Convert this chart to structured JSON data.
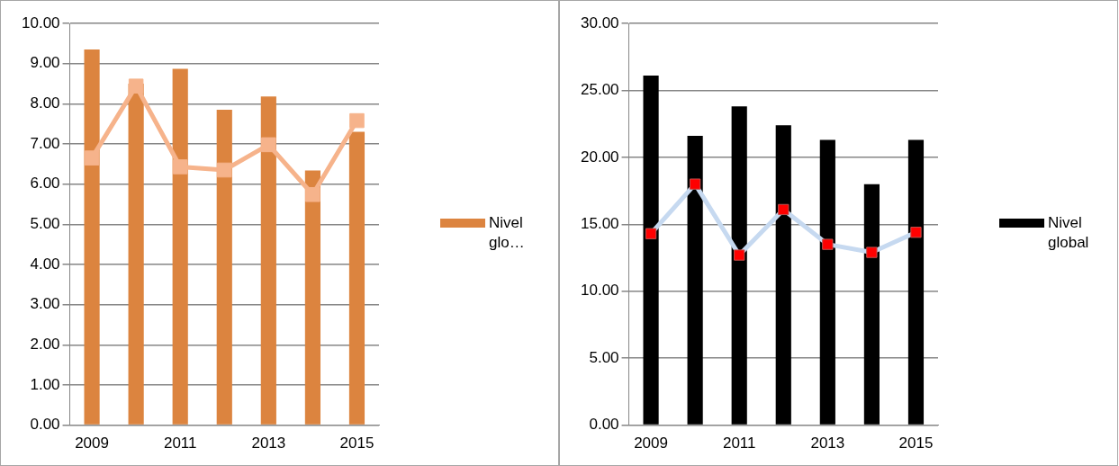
{
  "chart_data": [
    {
      "type": "bar",
      "categories": [
        "2009",
        null,
        "2011",
        null,
        "2013",
        null,
        "2015"
      ],
      "series": [
        {
          "name": "Nivel glo…",
          "color": "#dc843f",
          "values": [
            9.35,
            8.5,
            8.87,
            7.85,
            8.18,
            6.34,
            7.3
          ]
        },
        {
          "type": "line",
          "color": "#f6b38b",
          "values": [
            6.65,
            8.44,
            6.43,
            6.35,
            6.98,
            5.74,
            7.58
          ]
        }
      ],
      "ylim": [
        0,
        10
      ],
      "yticks": [
        {
          "value": 0,
          "label": "0.00"
        },
        {
          "value": 1,
          "label": "1.00"
        },
        {
          "value": 2,
          "label": "2.00"
        },
        {
          "value": 3,
          "label": "3.00"
        },
        {
          "value": 4,
          "label": "4.00"
        },
        {
          "value": 5,
          "label": "5.00"
        },
        {
          "value": 6,
          "label": "6.00"
        },
        {
          "value": 7,
          "label": "7.00"
        },
        {
          "value": 8,
          "label": "8.00"
        },
        {
          "value": 9,
          "label": "9.00"
        },
        {
          "value": 10,
          "label": "10.00"
        }
      ],
      "grid": "y",
      "legend": "right",
      "marker": "square"
    },
    {
      "type": "bar",
      "categories": [
        "2009",
        null,
        "2011",
        null,
        "2013",
        null,
        "2015"
      ],
      "series": [
        {
          "name": "Nivel global",
          "color": "#000000",
          "values": [
            26.1,
            21.6,
            23.8,
            22.4,
            21.3,
            18.0,
            21.3
          ]
        },
        {
          "type": "line",
          "color": "#c6d9f0",
          "values": [
            14.3,
            18.0,
            12.7,
            16.1,
            13.5,
            12.9,
            14.4
          ]
        }
      ],
      "ylim": [
        0,
        30
      ],
      "yticks": [
        {
          "value": 0,
          "label": "0.00"
        },
        {
          "value": 5,
          "label": "5.00"
        },
        {
          "value": 10,
          "label": "10.00"
        },
        {
          "value": 15,
          "label": "15.00"
        },
        {
          "value": 20,
          "label": "20.00"
        },
        {
          "value": 25,
          "label": "25.00"
        },
        {
          "value": 30,
          "label": "30.00"
        }
      ],
      "grid": "y",
      "legend": "right",
      "marker": "square"
    }
  ]
}
